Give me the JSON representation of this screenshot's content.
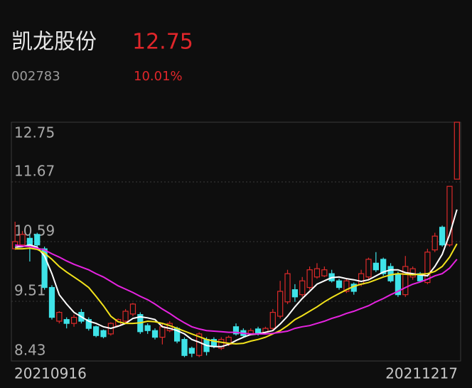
{
  "chart_data": {
    "type": "candlestick",
    "title": "凯龙股份",
    "price": "12.75",
    "code": "002783",
    "change": "10.01%",
    "categories": [
      "20210916",
      null,
      null,
      null,
      null,
      null,
      null,
      null,
      null,
      null,
      null,
      null,
      null,
      null,
      null,
      null,
      null,
      null,
      null,
      null,
      null,
      null,
      null,
      null,
      null,
      null,
      null,
      null,
      null,
      null,
      null,
      null,
      null,
      null,
      null,
      null,
      null,
      null,
      null,
      null,
      null,
      null,
      null,
      null,
      null,
      null,
      null,
      null,
      null,
      null,
      null,
      null,
      null,
      null,
      null,
      null,
      null,
      null,
      null,
      null,
      "20211217"
    ],
    "open": [
      10.46,
      10.53,
      10.65,
      10.72,
      10.46,
      9.76,
      9.15,
      9.18,
      9.11,
      9.31,
      9.18,
      9.05,
      8.98,
      8.92,
      9.07,
      9.15,
      9.28,
      9.27,
      9.07,
      8.98,
      8.86,
      8.98,
      9.02,
      8.82,
      8.66,
      8.53,
      8.82,
      8.82,
      8.66,
      8.73,
      9.05,
      8.98,
      8.92,
      9.01,
      8.95,
      9.02,
      9.24,
      9.5,
      9.72,
      9.63,
      9.76,
      9.95,
      9.97,
      10.01,
      9.88,
      9.69,
      9.82,
      9.82,
      9.95,
      10.2,
      10.27,
      10.14,
      10.01,
      9.63,
      9.95,
      10.01,
      9.85,
      10.44,
      10.85,
      10.53,
      11.72
    ],
    "high": [
      10.95,
      10.78,
      10.72,
      10.75,
      10.5,
      9.8,
      9.33,
      9.22,
      9.27,
      9.37,
      9.22,
      9.07,
      9.0,
      9.13,
      9.2,
      9.37,
      9.48,
      9.31,
      9.11,
      9.02,
      9.11,
      9.15,
      9.05,
      8.86,
      8.69,
      8.95,
      8.86,
      8.86,
      8.86,
      8.89,
      9.11,
      9.02,
      9.02,
      9.05,
      9.05,
      9.37,
      9.88,
      10.08,
      9.82,
      9.95,
      10.14,
      10.2,
      10.14,
      10.08,
      9.92,
      9.92,
      9.85,
      10.08,
      10.3,
      10.4,
      10.3,
      10.2,
      10.05,
      10.33,
      10.14,
      10.04,
      10.46,
      10.75,
      10.88,
      11.59,
      12.75
    ],
    "low": [
      10.44,
      10.5,
      10.23,
      10.46,
      9.72,
      9.18,
      9.11,
      9.02,
      9.05,
      9.11,
      8.98,
      8.86,
      8.84,
      8.89,
      9.05,
      9.11,
      9.24,
      8.92,
      8.92,
      8.82,
      8.73,
      8.95,
      8.75,
      8.5,
      8.5,
      8.5,
      8.53,
      8.66,
      8.63,
      8.7,
      8.89,
      8.86,
      8.89,
      8.89,
      8.92,
      8.98,
      9.2,
      9.46,
      9.5,
      9.59,
      9.72,
      9.92,
      9.95,
      9.85,
      9.72,
      9.66,
      9.63,
      9.78,
      9.9,
      10.04,
      9.97,
      9.85,
      9.59,
      9.59,
      9.9,
      9.85,
      9.82,
      10.4,
      10.5,
      10.5,
      11.72
    ],
    "close": [
      10.59,
      10.72,
      10.53,
      10.53,
      9.76,
      9.22,
      9.31,
      9.11,
      9.22,
      9.15,
      9.02,
      8.89,
      8.87,
      9.11,
      9.18,
      9.33,
      9.46,
      8.96,
      8.98,
      8.86,
      9.05,
      9.11,
      8.79,
      8.53,
      8.57,
      8.92,
      8.6,
      8.69,
      8.82,
      8.86,
      8.92,
      8.89,
      8.98,
      8.92,
      9.02,
      9.31,
      9.69,
      10.01,
      9.59,
      9.88,
      10.08,
      10.1,
      10.08,
      9.88,
      9.76,
      9.88,
      9.69,
      10.01,
      10.27,
      10.08,
      10.01,
      9.88,
      9.63,
      10.14,
      10.1,
      9.88,
      10.4,
      10.69,
      10.53,
      11.59,
      12.75
    ],
    "up_color": "#dc2a2a",
    "down_color": "#3fe3e8",
    "series": [
      {
        "color": "#ffffff",
        "values": [
          10.49,
          10.5,
          10.53,
          10.49,
          10.33,
          10.01,
          9.63,
          9.46,
          9.31,
          9.23,
          9.15,
          9.11,
          9.05,
          9.02,
          9.06,
          9.11,
          9.2,
          9.23,
          9.21,
          9.18,
          9.05,
          9.02,
          8.98,
          8.92,
          8.82,
          8.77,
          8.71,
          8.69,
          8.69,
          8.73,
          8.8,
          8.86,
          8.91,
          8.92,
          8.95,
          8.98,
          9.1,
          9.24,
          9.41,
          9.56,
          9.69,
          9.82,
          9.88,
          9.94,
          9.95,
          9.92,
          9.9,
          9.87,
          9.9,
          9.97,
          10.04,
          10.08,
          10.08,
          10.03,
          10.01,
          9.99,
          9.97,
          10.14,
          10.36,
          10.72,
          11.17
        ]
      },
      {
        "color": "#f2e21b",
        "values": [
          10.46,
          10.46,
          10.47,
          10.45,
          10.38,
          10.27,
          10.14,
          10.04,
          9.95,
          9.86,
          9.76,
          9.6,
          9.43,
          9.24,
          9.14,
          9.11,
          9.11,
          9.12,
          9.15,
          9.14,
          9.11,
          9.07,
          9.02,
          8.97,
          8.92,
          8.87,
          8.82,
          8.79,
          8.77,
          8.75,
          8.74,
          8.75,
          8.79,
          8.82,
          8.86,
          8.92,
          8.98,
          9.07,
          9.18,
          9.25,
          9.33,
          9.41,
          9.5,
          9.58,
          9.65,
          9.72,
          9.78,
          9.82,
          9.85,
          9.9,
          9.95,
          9.99,
          10.01,
          10.0,
          9.99,
          10.0,
          10.01,
          10.05,
          10.14,
          10.31,
          10.55
        ]
      },
      {
        "color": "#e623e0",
        "values": [
          10.53,
          10.51,
          10.5,
          10.47,
          10.44,
          10.37,
          10.31,
          10.24,
          10.18,
          10.13,
          10.08,
          10.01,
          9.95,
          9.87,
          9.79,
          9.73,
          9.67,
          9.6,
          9.54,
          9.46,
          9.37,
          9.29,
          9.2,
          9.12,
          9.05,
          9.01,
          8.98,
          8.97,
          8.96,
          8.95,
          8.95,
          8.93,
          8.92,
          8.92,
          8.92,
          8.93,
          8.95,
          8.97,
          9.02,
          9.05,
          9.07,
          9.11,
          9.15,
          9.2,
          9.24,
          9.29,
          9.33,
          9.38,
          9.43,
          9.5,
          9.56,
          9.63,
          9.69,
          9.76,
          9.82,
          9.86,
          9.91,
          9.97,
          10.01,
          10.11,
          10.27
        ]
      }
    ],
    "ylim": [
      8.43,
      12.75
    ],
    "yticks": [
      12.75,
      11.67,
      10.59,
      9.51,
      8.43
    ],
    "grid": true
  }
}
